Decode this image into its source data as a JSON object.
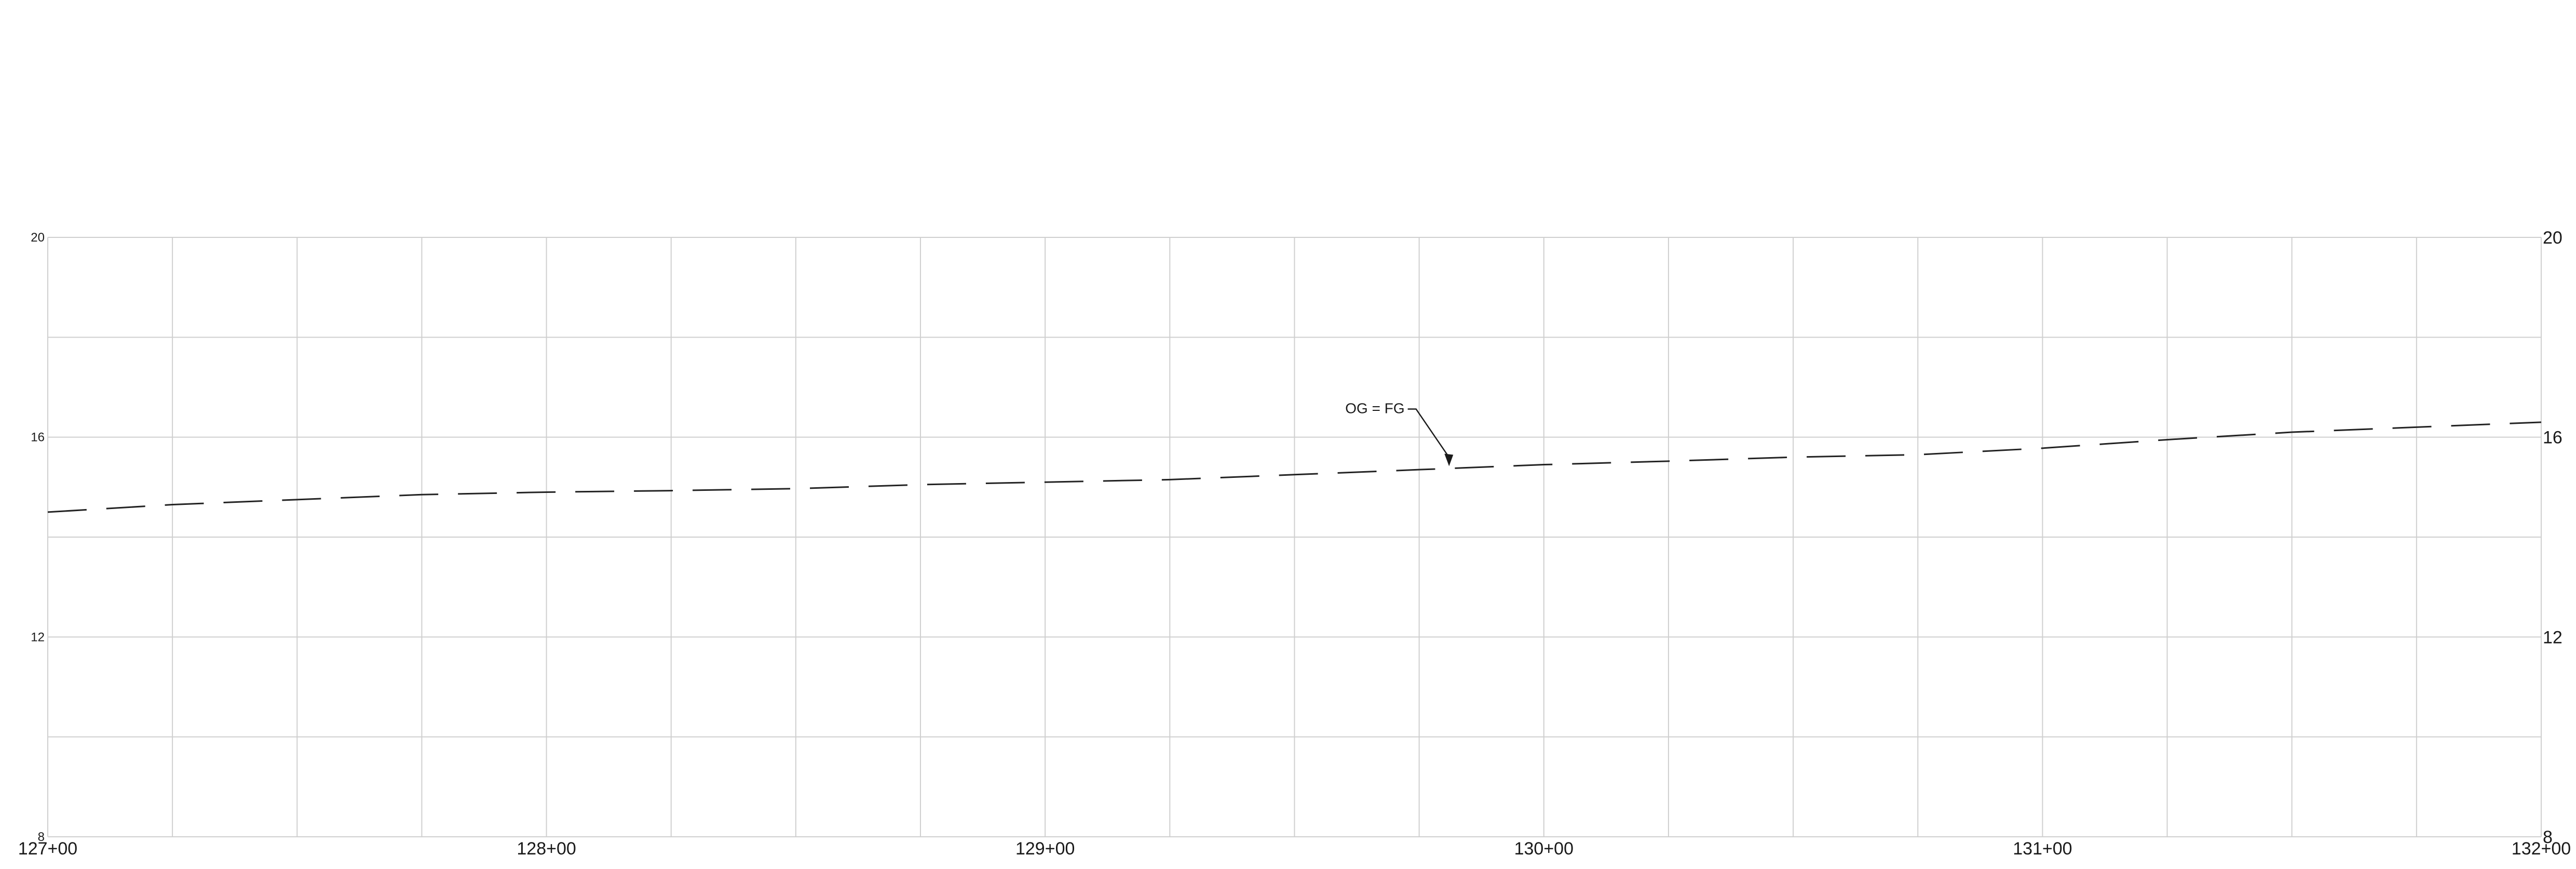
{
  "chart_data": {
    "type": "line",
    "title": "",
    "xlabel": "",
    "ylabel": "",
    "xlim": [
      12700,
      13200
    ],
    "ylim": [
      8,
      20
    ],
    "grid": true,
    "x_ticks": [
      {
        "value": 12700,
        "label": "127+00"
      },
      {
        "value": 12800,
        "label": "128+00"
      },
      {
        "value": 12900,
        "label": "129+00"
      },
      {
        "value": 13000,
        "label": "130+00"
      },
      {
        "value": 13100,
        "label": "131+00"
      },
      {
        "value": 13200,
        "label": "132+00"
      }
    ],
    "x_gridlines": [
      12700,
      12725,
      12750,
      12775,
      12800,
      12825,
      12850,
      12875,
      12900,
      12925,
      12950,
      12975,
      13000,
      13025,
      13050,
      13075,
      13100,
      13125,
      13150,
      13175,
      13200
    ],
    "y_gridlines": [
      8,
      10,
      12,
      14,
      16,
      18,
      20
    ],
    "y_ticks_left": [
      {
        "value": 20,
        "label": "20"
      },
      {
        "value": 16,
        "label": "16"
      },
      {
        "value": 12,
        "label": "12"
      },
      {
        "value": 8,
        "label": "8"
      }
    ],
    "y_ticks_right": [
      {
        "value": 20,
        "label": "20"
      },
      {
        "value": 16,
        "label": "16"
      },
      {
        "value": 12,
        "label": "12"
      },
      {
        "value": 8,
        "label": "8"
      }
    ],
    "series": [
      {
        "style": "dashed",
        "color": "#222222",
        "x": [
          12700,
          12725,
          12750,
          12775,
          12800,
          12825,
          12850,
          12875,
          12900,
          12925,
          12950,
          12975,
          13000,
          13025,
          13050,
          13075,
          13100,
          13125,
          13150,
          13175,
          13200
        ],
        "y": [
          14.5,
          14.65,
          14.75,
          14.85,
          14.9,
          14.93,
          14.97,
          15.05,
          15.1,
          15.15,
          15.25,
          15.35,
          15.45,
          15.52,
          15.6,
          15.65,
          15.78,
          15.95,
          16.1,
          16.2,
          16.3
        ]
      }
    ],
    "annotations": [
      {
        "text": "OG = FG",
        "x": 12981,
        "y": 15.42
      }
    ]
  }
}
